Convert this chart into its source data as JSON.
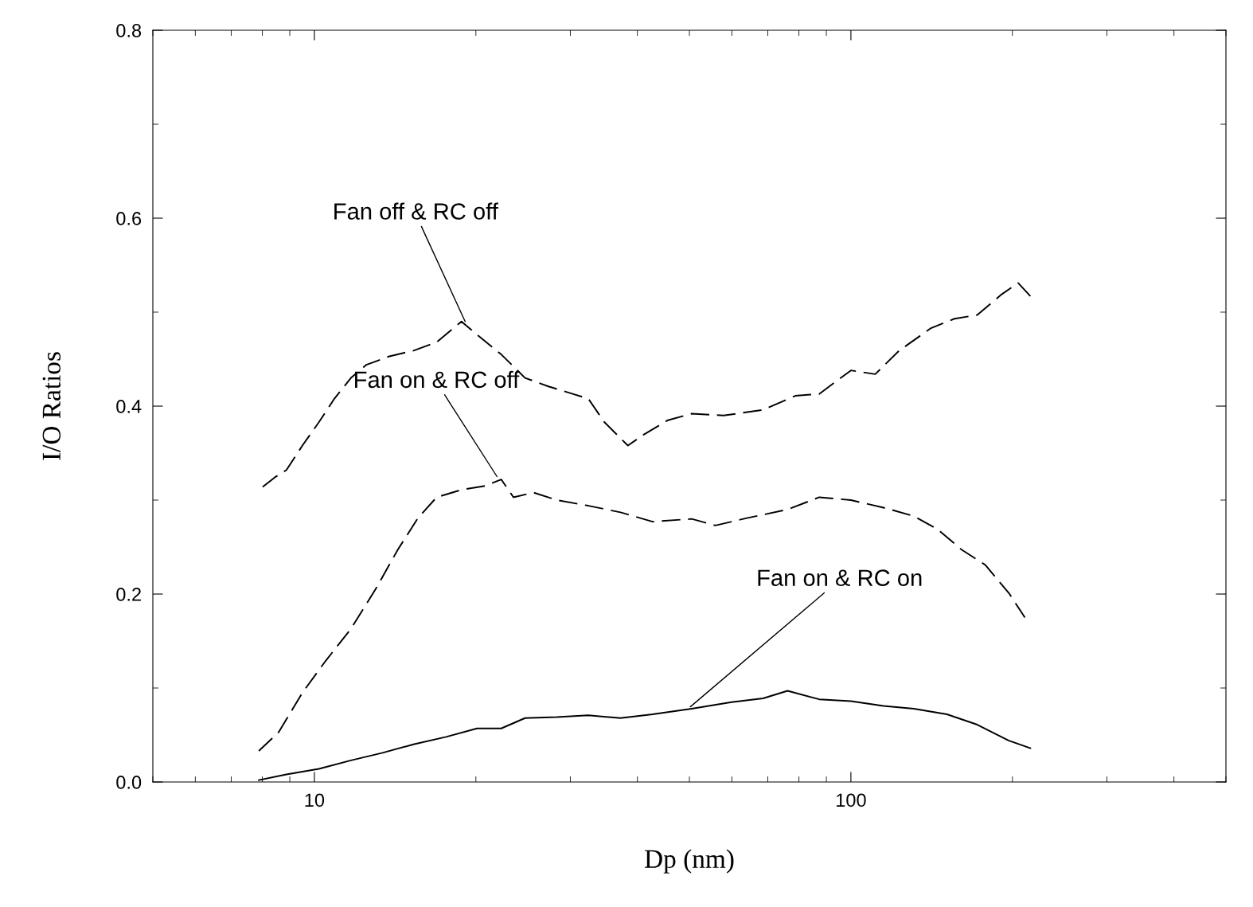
{
  "chart_data": {
    "type": "line",
    "xlabel": "Dp (nm)",
    "ylabel": "I/O Ratios",
    "log": "x",
    "xlim": [
      5,
      500
    ],
    "xticks": [
      10,
      100
    ],
    "ylim": [
      0,
      0.8
    ],
    "yticks": [
      {
        "value": 0,
        "label": "0.0"
      },
      0.2,
      0.4,
      0.6,
      0.8
    ],
    "grid": false,
    "legend": false,
    "marker": "none",
    "series": [
      {
        "color": "#000000",
        "line_style": "dashed",
        "x": [
          8.01,
          8.43,
          8.87,
          9.5,
          10.2,
          10.9,
          11.7,
          12.5,
          13.8,
          15.3,
          16.9,
          18.8,
          20.1,
          22.3,
          24.7,
          27.3,
          30.3,
          32.4,
          34.7,
          38.4,
          41.2,
          45.6,
          50.5,
          57.9,
          68.6,
          78.8,
          87.3,
          100,
          111,
          123,
          141,
          156,
          172,
          191,
          205,
          216
        ],
        "values": [
          0.314,
          0.324,
          0.332,
          0.358,
          0.383,
          0.408,
          0.43,
          0.444,
          0.453,
          0.459,
          0.468,
          0.49,
          0.476,
          0.455,
          0.43,
          0.421,
          0.413,
          0.408,
          0.383,
          0.358,
          0.37,
          0.385,
          0.392,
          0.39,
          0.396,
          0.411,
          0.413,
          0.438,
          0.434,
          0.459,
          0.483,
          0.493,
          0.497,
          0.519,
          0.531,
          0.517
        ]
      },
      {
        "color": "#000000",
        "line_style": "dashed",
        "x": [
          7.88,
          8.58,
          9.5,
          10.5,
          11.7,
          13.0,
          14.3,
          15.6,
          16.9,
          18.8,
          20.8,
          22.3,
          23.5,
          25.6,
          28.3,
          32.4,
          37.2,
          42.7,
          50.5,
          55.9,
          64.2,
          76.2,
          87.3,
          100,
          115,
          131,
          145,
          161,
          178,
          197,
          211
        ],
        "values": [
          0.033,
          0.053,
          0.095,
          0.129,
          0.163,
          0.205,
          0.247,
          0.281,
          0.303,
          0.311,
          0.315,
          0.322,
          0.303,
          0.308,
          0.3,
          0.294,
          0.287,
          0.277,
          0.28,
          0.273,
          0.281,
          0.29,
          0.303,
          0.3,
          0.292,
          0.283,
          0.269,
          0.247,
          0.231,
          0.201,
          0.175
        ]
      },
      {
        "color": "#000000",
        "line_style": "solid",
        "x": [
          7.88,
          8.87,
          10.2,
          11.7,
          13.4,
          15.3,
          17.6,
          20.1,
          22.3,
          24.7,
          28.3,
          32.4,
          37.2,
          42.7,
          50.5,
          59.9,
          68.6,
          76.2,
          87.3,
          100,
          115,
          131,
          151,
          172,
          197,
          216
        ],
        "values": [
          0.002,
          0.008,
          0.014,
          0.023,
          0.031,
          0.04,
          0.048,
          0.057,
          0.057,
          0.068,
          0.069,
          0.071,
          0.068,
          0.072,
          0.078,
          0.085,
          0.089,
          0.097,
          0.088,
          0.086,
          0.081,
          0.078,
          0.072,
          0.061,
          0.044,
          0.036
        ]
      }
    ],
    "annotations": [
      {
        "text": "Fan off & RC off",
        "x": 19.1,
        "y": 0.49
      },
      {
        "text": "Fan on & RC off",
        "x": 21.9,
        "y": 0.325
      },
      {
        "text": "Fan on & RC on",
        "x": 50.2,
        "y": 0.08
      }
    ]
  }
}
